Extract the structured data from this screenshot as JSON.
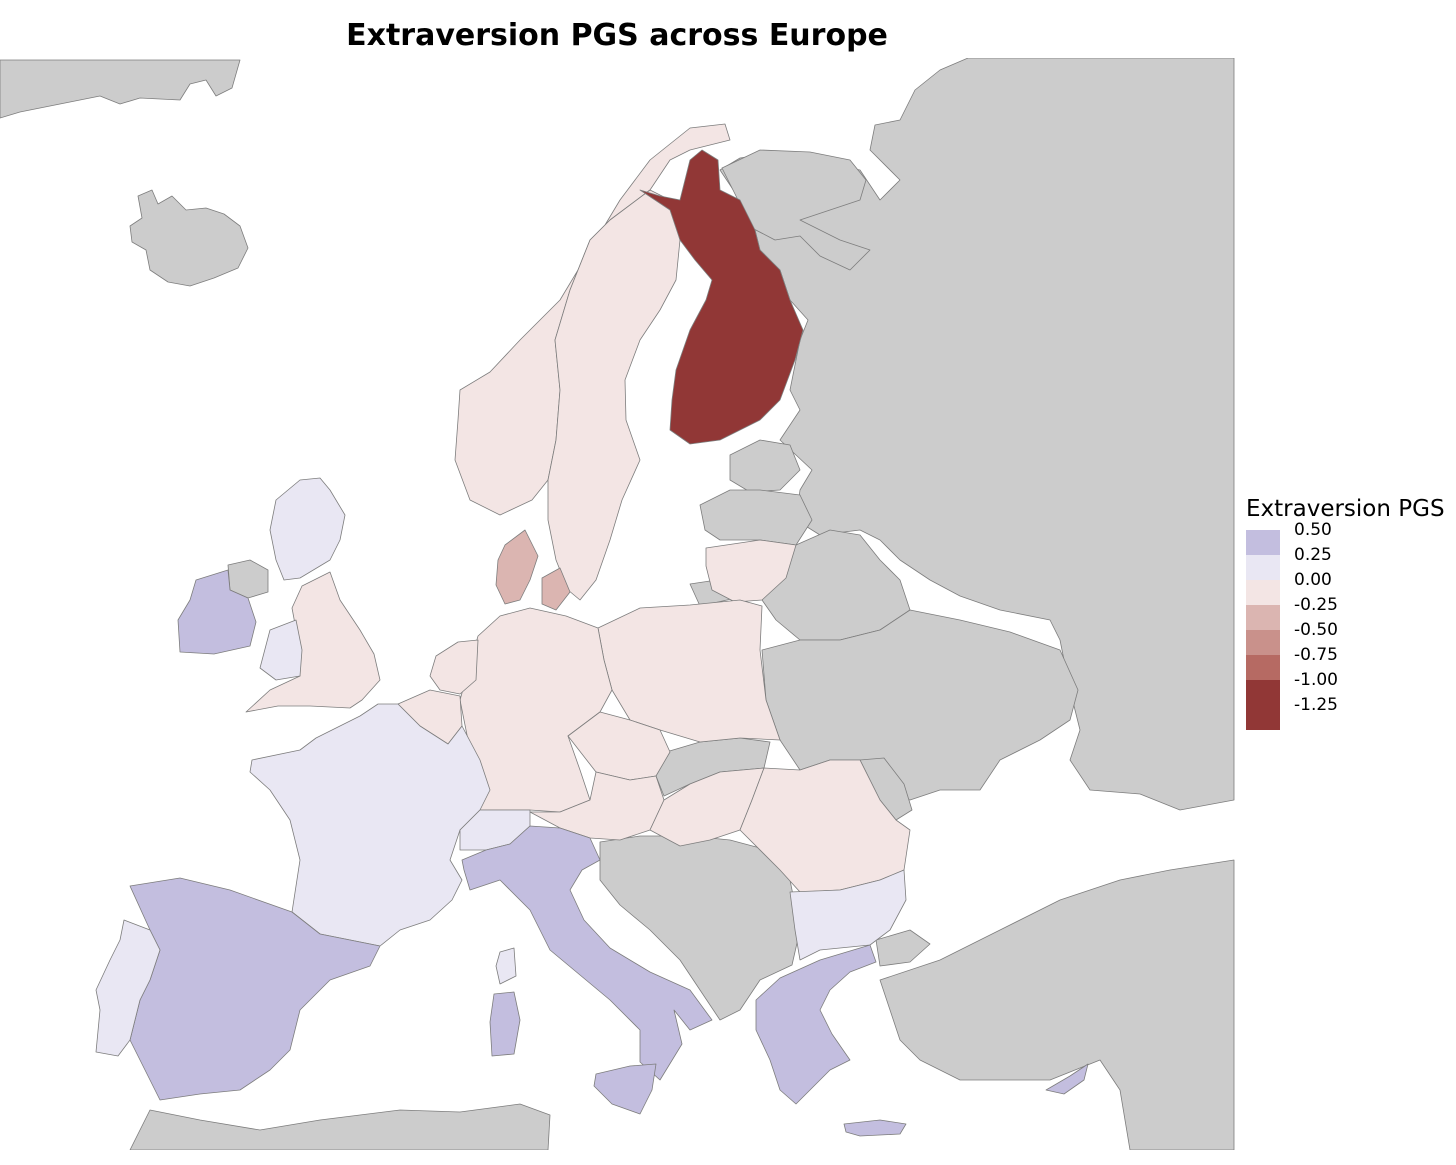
{
  "title": "Extraversion PGS across Europe",
  "colors": {
    "no_data": "#cccccc",
    "border": "#7d7d7d",
    "sea": "#ffffff"
  },
  "legend": {
    "title": "Extraversion PGS",
    "items": [
      {
        "label": "0.50",
        "color": "#c3bedf"
      },
      {
        "label": "0.25",
        "color": "#e9e7f3"
      },
      {
        "label": "0.00",
        "color": "#f3e5e4"
      },
      {
        "label": "-0.25",
        "color": "#dbb5b1"
      },
      {
        "label": "-0.50",
        "color": "#c9918b"
      },
      {
        "label": "-0.75",
        "color": "#b66a63"
      },
      {
        "label": "-1.00",
        "color": "#913736"
      },
      {
        "label": "-1.25",
        "color": "#913736"
      }
    ]
  },
  "countries": {
    "finland": {
      "value": -1.25
    },
    "denmark": {
      "value": -0.35
    },
    "norway": {
      "value": -0.05
    },
    "sweden": {
      "value": -0.05
    },
    "united_kingdom": {
      "value": -0.05
    },
    "netherlands": {
      "value": -0.05
    },
    "belgium": {
      "value": -0.05
    },
    "germany": {
      "value": -0.05
    },
    "poland": {
      "value": -0.05
    },
    "czechia": {
      "value": -0.05
    },
    "austria": {
      "value": -0.05
    },
    "hungary": {
      "value": -0.05
    },
    "romania": {
      "value": -0.05
    },
    "lithuania": {
      "value": -0.05
    },
    "france": {
      "value": 0.1
    },
    "switzerland": {
      "value": 0.1
    },
    "portugal": {
      "value": 0.1
    },
    "bulgaria": {
      "value": 0.1
    },
    "scotland": {
      "value": 0.1
    },
    "wales": {
      "value": 0.1
    },
    "corsica": {
      "value": 0.1
    },
    "ireland": {
      "value": 0.4
    },
    "spain": {
      "value": 0.4
    },
    "italy": {
      "value": 0.4
    },
    "sardinia": {
      "value": 0.4
    },
    "sicily": {
      "value": 0.4
    },
    "greece": {
      "value": 0.4
    },
    "crete": {
      "value": 0.4
    },
    "cyprus": {
      "value": 0.4
    }
  }
}
